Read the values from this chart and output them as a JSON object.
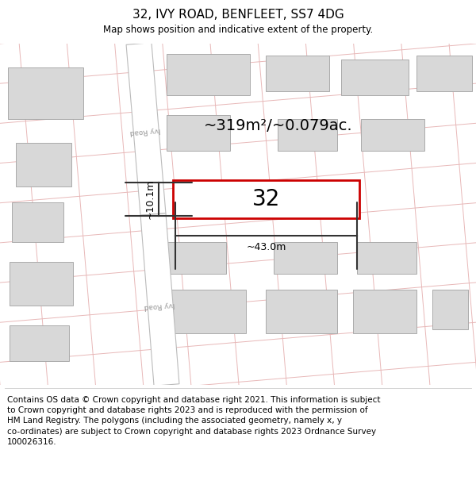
{
  "title": "32, IVY ROAD, BENFLEET, SS7 4DG",
  "subtitle": "Map shows position and indicative extent of the property.",
  "footer": "Contains OS data © Crown copyright and database right 2021. This information is subject\nto Crown copyright and database rights 2023 and is reproduced with the permission of\nHM Land Registry. The polygons (including the associated geometry, namely x, y\nco-ordinates) are subject to Crown copyright and database rights 2023 Ordnance Survey\n100026316.",
  "map_bg": "#f2f2f2",
  "road_fill": "#ffffff",
  "road_edge": "#bbbbbb",
  "road_label_color": "#999999",
  "building_fill": "#d8d8d8",
  "building_edge": "#aaaaaa",
  "grid_line_color": "#e8b8b8",
  "highlight_color": "#cc0000",
  "dim_color": "#333333",
  "area_text": "~319m²/~0.079ac.",
  "number_text": "32",
  "dim_width": "~43.0m",
  "dim_height": "~10.1m",
  "title_fontsize": 11,
  "subtitle_fontsize": 8.5,
  "footer_fontsize": 7.5,
  "area_fontsize": 14,
  "number_fontsize": 20,
  "road_label_fontsize": 6.5
}
